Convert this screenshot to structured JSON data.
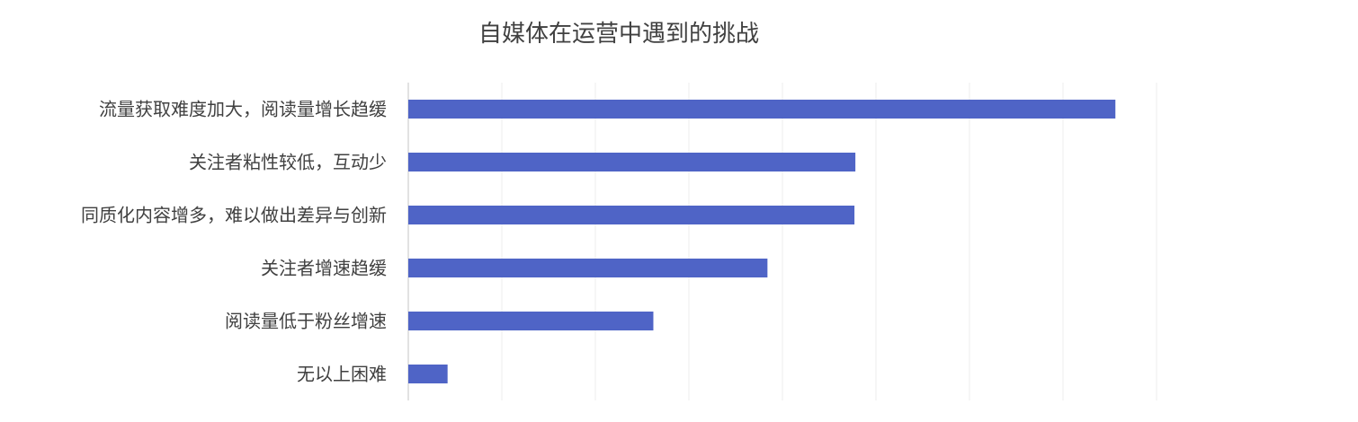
{
  "chart_data": {
    "type": "bar",
    "orientation": "horizontal",
    "title": "自媒体在运营中遇到的挑战",
    "categories": [
      "流量获取难度加大，阅读量增长趋缓",
      "关注者粘性较低，互动少",
      "同质化内容增多，难以做出差异与创新",
      "关注者增速趋缓",
      "阅读量低于粉丝增速",
      "无以上困难"
    ],
    "series": [
      {
        "values": [
          75.6,
          47.8,
          47.7,
          38.4,
          26.2,
          4.2
        ]
      }
    ],
    "xlim": [
      0,
      80
    ],
    "grid": true,
    "legend": "none",
    "color": "#4f64c6"
  }
}
